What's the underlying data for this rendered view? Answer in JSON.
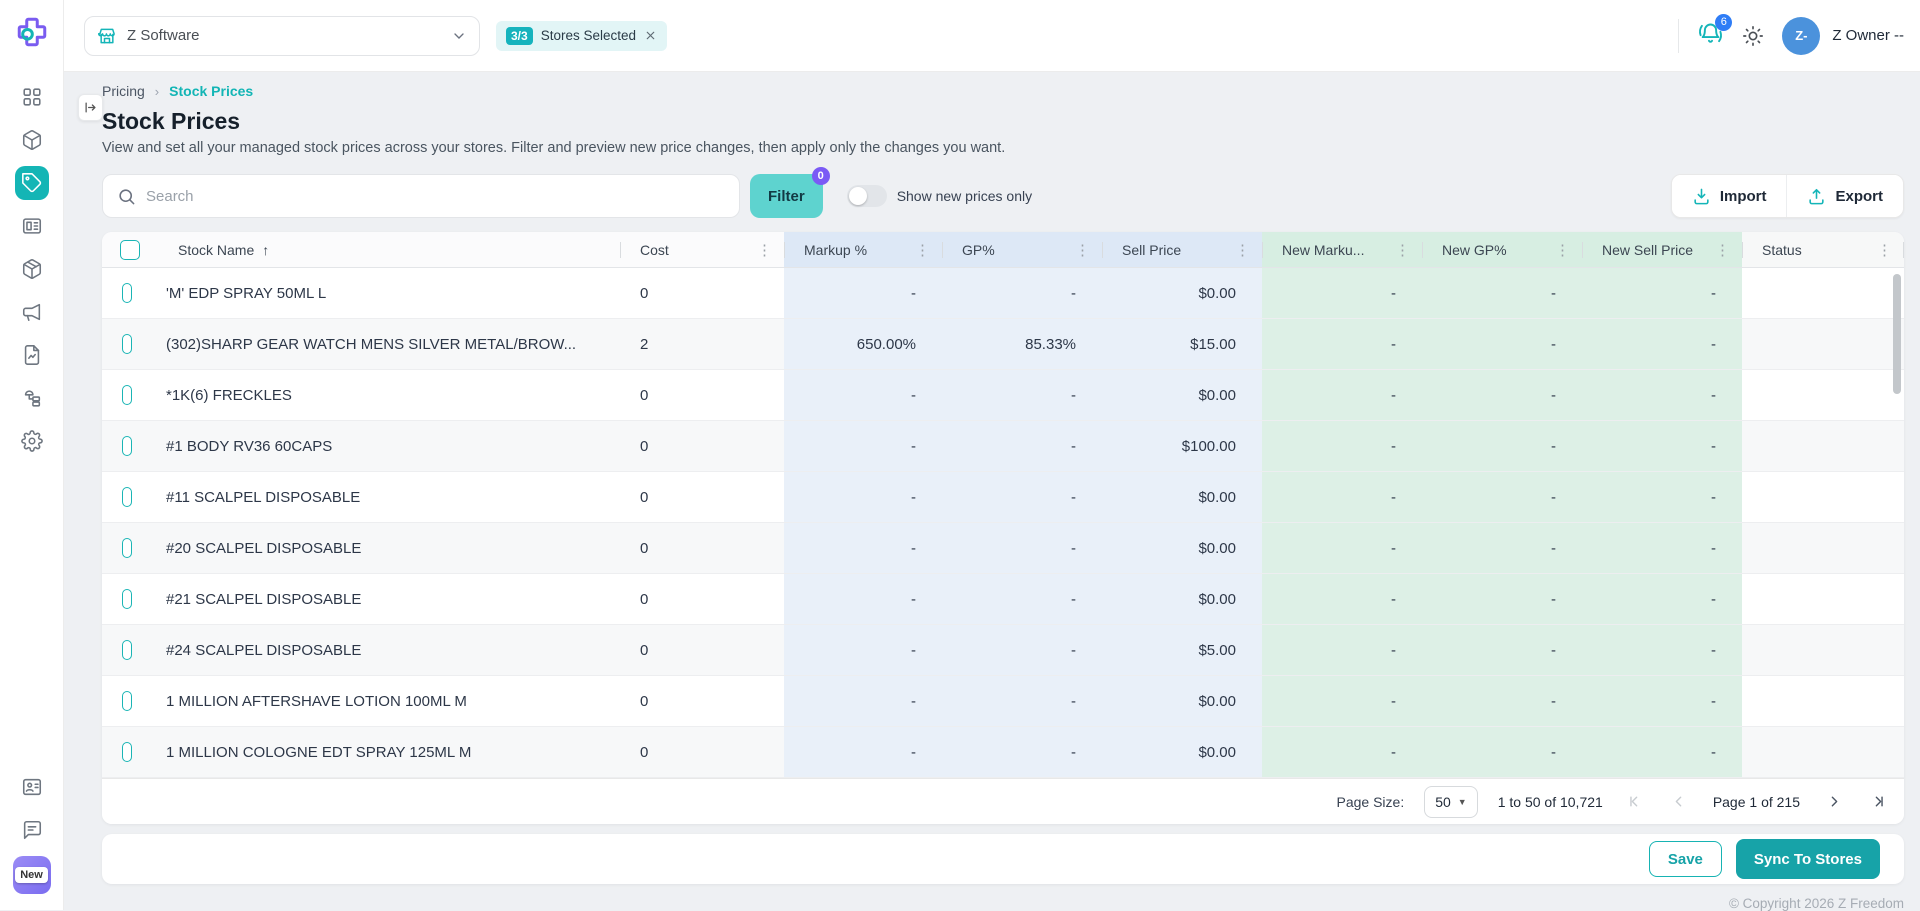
{
  "brand": {
    "accent": "#14b5b5",
    "purple": "#7a5af5",
    "badge_blue": "#2f7df6"
  },
  "topbar": {
    "store_selector_value": "Z Software",
    "stores_chip": {
      "badge": "3/3",
      "label": "Stores Selected"
    },
    "notification_count": "6",
    "user": {
      "initials": "Z-",
      "name": "Z Owner --"
    }
  },
  "sidebar": {
    "items": [
      {
        "icon": "dashboard-grid-icon",
        "active": false
      },
      {
        "icon": "products-cube-icon",
        "active": false
      },
      {
        "icon": "pricing-tag-icon",
        "active": true
      },
      {
        "icon": "register-newspaper-icon",
        "active": false
      },
      {
        "icon": "inventory-box-icon",
        "active": false
      },
      {
        "icon": "marketing-megaphone-icon",
        "active": false
      },
      {
        "icon": "reports-document-icon",
        "active": false
      },
      {
        "icon": "integrations-sitemap-icon",
        "active": false
      },
      {
        "icon": "settings-gear-icon",
        "active": false
      }
    ],
    "bottom_items": [
      {
        "icon": "contacts-card-icon"
      },
      {
        "icon": "chat-icon"
      }
    ],
    "new_badge": "New"
  },
  "breadcrumb": {
    "parent": "Pricing",
    "current": "Stock Prices"
  },
  "page": {
    "title": "Stock Prices",
    "description": "View and set all your managed stock prices across your stores. Filter and preview new price changes, then apply only the changes you want."
  },
  "controls": {
    "search_placeholder": "Search",
    "filter_label": "Filter",
    "filter_badge": "0",
    "toggle_label": "Show new prices only",
    "import_label": "Import",
    "export_label": "Export"
  },
  "table": {
    "columns": [
      {
        "label": ""
      },
      {
        "label": "Stock Name"
      },
      {
        "label": "Cost"
      },
      {
        "label": "Markup %"
      },
      {
        "label": "GP%"
      },
      {
        "label": "Sell Price"
      },
      {
        "label": "New Marku..."
      },
      {
        "label": "New GP%"
      },
      {
        "label": "New Sell Price"
      },
      {
        "label": "Status"
      }
    ],
    "sort_arrow": "↑",
    "rows": [
      {
        "name": "'M' EDP SPRAY 50ML L",
        "cost": "0",
        "markup": "-",
        "gp": "-",
        "sell_price": "$0.00",
        "new_markup": "-",
        "new_gp": "-",
        "new_sell_price": "-",
        "status": ""
      },
      {
        "name": "(302)SHARP GEAR WATCH MENS SILVER METAL/BROW...",
        "cost": "2",
        "markup": "650.00%",
        "gp": "85.33%",
        "sell_price": "$15.00",
        "new_markup": "-",
        "new_gp": "-",
        "new_sell_price": "-",
        "status": ""
      },
      {
        "name": "*1K(6) FRECKLES",
        "cost": "0",
        "markup": "-",
        "gp": "-",
        "sell_price": "$0.00",
        "new_markup": "-",
        "new_gp": "-",
        "new_sell_price": "-",
        "status": ""
      },
      {
        "name": "#1 BODY RV36 60CAPS",
        "cost": "0",
        "markup": "-",
        "gp": "-",
        "sell_price": "$100.00",
        "new_markup": "-",
        "new_gp": "-",
        "new_sell_price": "-",
        "status": ""
      },
      {
        "name": "#11 SCALPEL DISPOSABLE",
        "cost": "0",
        "markup": "-",
        "gp": "-",
        "sell_price": "$0.00",
        "new_markup": "-",
        "new_gp": "-",
        "new_sell_price": "-",
        "status": ""
      },
      {
        "name": "#20 SCALPEL DISPOSABLE",
        "cost": "0",
        "markup": "-",
        "gp": "-",
        "sell_price": "$0.00",
        "new_markup": "-",
        "new_gp": "-",
        "new_sell_price": "-",
        "status": ""
      },
      {
        "name": "#21 SCALPEL DISPOSABLE",
        "cost": "0",
        "markup": "-",
        "gp": "-",
        "sell_price": "$0.00",
        "new_markup": "-",
        "new_gp": "-",
        "new_sell_price": "-",
        "status": ""
      },
      {
        "name": "#24 SCALPEL DISPOSABLE",
        "cost": "0",
        "markup": "-",
        "gp": "-",
        "sell_price": "$5.00",
        "new_markup": "-",
        "new_gp": "-",
        "new_sell_price": "-",
        "status": ""
      },
      {
        "name": "1 MILLION AFTERSHAVE LOTION 100ML M",
        "cost": "0",
        "markup": "-",
        "gp": "-",
        "sell_price": "$0.00",
        "new_markup": "-",
        "new_gp": "-",
        "new_sell_price": "-",
        "status": ""
      },
      {
        "name": "1 MILLION COLOGNE EDT SPRAY 125ML M",
        "cost": "0",
        "markup": "-",
        "gp": "-",
        "sell_price": "$0.00",
        "new_markup": "-",
        "new_gp": "-",
        "new_sell_price": "-",
        "status": ""
      }
    ]
  },
  "pagination": {
    "page_size_label": "Page Size:",
    "page_size": "50",
    "range": "1 to 50 of 10,721",
    "page_info": "Page 1 of 215"
  },
  "footer": {
    "save_label": "Save",
    "sync_label": "Sync To Stores",
    "copyright": "© Copyright 2026 Z Freedom"
  }
}
